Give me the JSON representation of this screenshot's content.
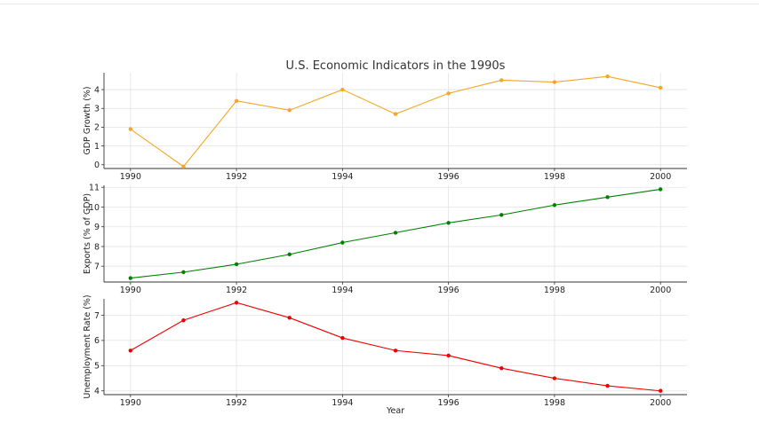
{
  "chart_data": {
    "type": "line",
    "title": "U.S. Economic Indicators in the 1990s",
    "xlabel": "Year",
    "x": [
      1990,
      1991,
      1992,
      1993,
      1994,
      1995,
      1996,
      1997,
      1998,
      1999,
      2000
    ],
    "x_ticks": [
      1990,
      1992,
      1994,
      1996,
      1998,
      2000
    ],
    "grid": true,
    "panels": [
      {
        "ylabel": "GDP Growth (%)",
        "color": "#f5a623",
        "ylim": [
          -0.2,
          4.9
        ],
        "y_ticks": [
          0,
          1,
          2,
          3,
          4
        ],
        "values": [
          1.9,
          -0.1,
          3.4,
          2.9,
          4.0,
          2.7,
          3.8,
          4.5,
          4.4,
          4.7,
          4.1
        ]
      },
      {
        "ylabel": "Exports (% of GDP)",
        "color": "#008000",
        "ylim": [
          6.2,
          11.1
        ],
        "y_ticks": [
          7,
          8,
          9,
          10,
          11
        ],
        "values": [
          6.4,
          6.7,
          7.1,
          7.6,
          8.2,
          8.7,
          9.2,
          9.6,
          10.1,
          10.5,
          10.9
        ]
      },
      {
        "ylabel": "Unemployment Rate (%)",
        "color": "#ee0000",
        "ylim": [
          3.85,
          7.65
        ],
        "y_ticks": [
          4,
          5,
          6,
          7
        ],
        "values": [
          5.6,
          6.8,
          7.5,
          6.9,
          6.1,
          5.6,
          5.4,
          4.9,
          4.5,
          4.2,
          4.0
        ]
      }
    ]
  }
}
